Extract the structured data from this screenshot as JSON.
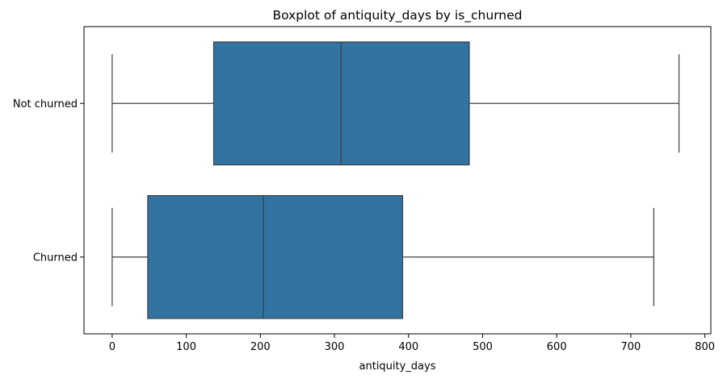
{
  "chart_data": {
    "type": "boxplot",
    "title": "Boxplot of antiquity_days by is_churned",
    "xlabel": "antiquity_days",
    "ylabel": "",
    "orientation": "horizontal",
    "xlim": [
      -38,
      808
    ],
    "x_ticks": [
      0,
      100,
      200,
      300,
      400,
      500,
      600,
      700,
      800
    ],
    "categories": [
      "Not churned",
      "Churned"
    ],
    "box_color": "#3274a1",
    "line_color": "#3f3f3f",
    "boxes": [
      {
        "category": "Not churned",
        "whisker_low": 0,
        "q1": 137,
        "median": 309,
        "q3": 482,
        "whisker_high": 765
      },
      {
        "category": "Churned",
        "whisker_low": 0,
        "q1": 48,
        "median": 204,
        "q3": 392,
        "whisker_high": 731
      }
    ],
    "grid": false,
    "legend": "none"
  }
}
